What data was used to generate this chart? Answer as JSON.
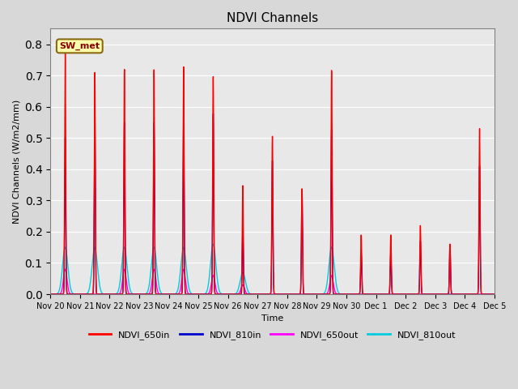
{
  "title": "NDVI Channels",
  "xlabel": "Time",
  "ylabel": "NDVI Channels (W/m2/mm)",
  "ylim": [
    0.0,
    0.85
  ],
  "background_color": "#e8e8e8",
  "station_label": "SW_met",
  "series": {
    "NDVI_650in": {
      "color": "#ff0000",
      "linewidth": 1.0
    },
    "NDVI_810in": {
      "color": "#0000cc",
      "linewidth": 1.0
    },
    "NDVI_650out": {
      "color": "#ff00ff",
      "linewidth": 1.0
    },
    "NDVI_810out": {
      "color": "#00ccdd",
      "linewidth": 1.0
    }
  },
  "xtick_labels": [
    "Nov 20",
    "Nov 21",
    "Nov 22",
    "Nov 23",
    "Nov 24",
    "Nov 25",
    "Nov 26",
    "Nov 27",
    "Nov 28",
    "Nov 29",
    "Nov 30",
    "Dec 1",
    "Dec 2",
    "Dec 3",
    "Dec 4",
    "Dec 5"
  ],
  "peaks_650in": [
    0.78,
    0.71,
    0.72,
    0.72,
    0.73,
    0.7,
    0.35,
    0.51,
    0.34,
    0.72,
    0.19,
    0.19,
    0.22,
    0.16,
    0.53,
    0.0
  ],
  "peaks_810in": [
    0.5,
    0.56,
    0.55,
    0.55,
    0.56,
    0.58,
    0.21,
    0.43,
    0.33,
    0.53,
    0.13,
    0.13,
    0.17,
    0.16,
    0.41,
    0.0
  ],
  "peaks_650out": [
    0.08,
    0.0,
    0.08,
    0.08,
    0.08,
    0.06,
    0.03,
    0.0,
    0.0,
    0.06,
    0.0,
    0.0,
    0.0,
    0.0,
    0.0,
    0.0
  ],
  "peaks_810out": [
    0.15,
    0.15,
    0.15,
    0.15,
    0.15,
    0.16,
    0.07,
    0.0,
    0.0,
    0.15,
    0.0,
    0.0,
    0.0,
    0.0,
    0.0,
    0.0
  ],
  "n_days": 15,
  "pts_per_day": 200
}
